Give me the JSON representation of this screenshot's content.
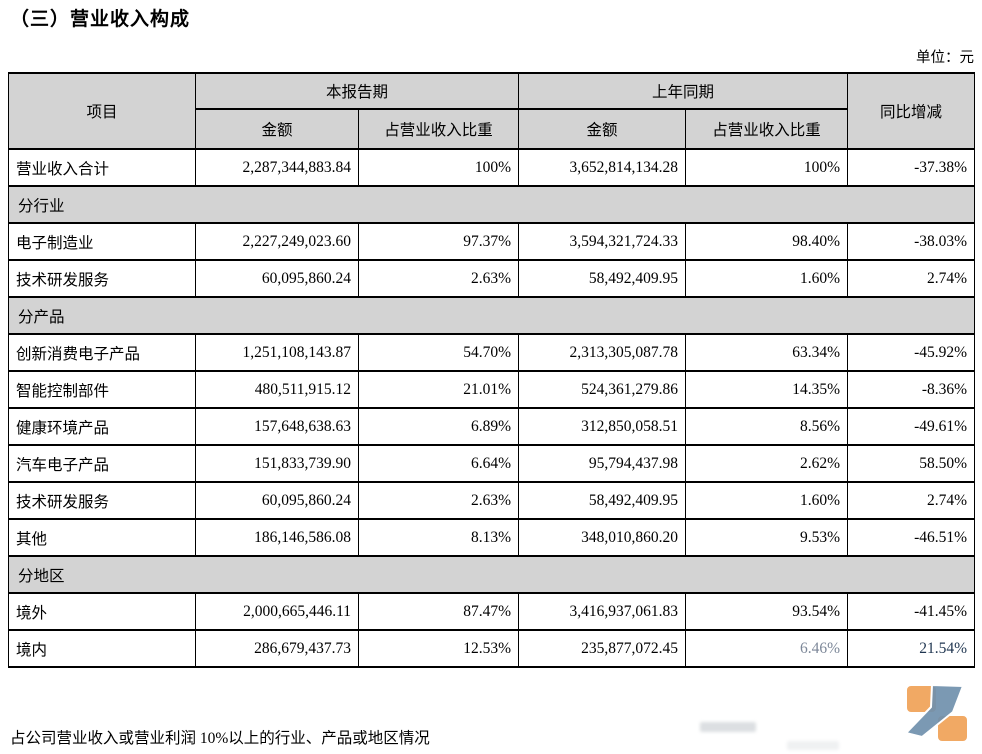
{
  "page": {
    "title": "（三）营业收入构成",
    "unit_label": "单位：元",
    "footer_note": "占公司营业收入或营业利润 10%以上的行业、产品或地区情况"
  },
  "table": {
    "header": {
      "item": "项目",
      "current_period": "本报告期",
      "prior_period": "上年同期",
      "amount": "金额",
      "pct_of_revenue": "占营业收入比重",
      "yoy_change": "同比增减"
    },
    "rows": [
      {
        "type": "data",
        "item": "营业收入合计",
        "cur_amount": "2,287,344,883.84",
        "cur_pct": "100%",
        "prior_amount": "3,652,814,134.28",
        "prior_pct": "100%",
        "yoy": "-37.38%"
      },
      {
        "type": "section",
        "item": "分行业"
      },
      {
        "type": "data",
        "item": "电子制造业",
        "cur_amount": "2,227,249,023.60",
        "cur_pct": "97.37%",
        "prior_amount": "3,594,321,724.33",
        "prior_pct": "98.40%",
        "yoy": "-38.03%"
      },
      {
        "type": "data",
        "item": "技术研发服务",
        "cur_amount": "60,095,860.24",
        "cur_pct": "2.63%",
        "prior_amount": "58,492,409.95",
        "prior_pct": "1.60%",
        "yoy": "2.74%"
      },
      {
        "type": "section",
        "item": "分产品"
      },
      {
        "type": "data",
        "item": "创新消费电子产品",
        "cur_amount": "1,251,108,143.87",
        "cur_pct": "54.70%",
        "prior_amount": "2,313,305,087.78",
        "prior_pct": "63.34%",
        "yoy": "-45.92%"
      },
      {
        "type": "data",
        "item": "智能控制部件",
        "cur_amount": "480,511,915.12",
        "cur_pct": "21.01%",
        "prior_amount": "524,361,279.86",
        "prior_pct": "14.35%",
        "yoy": "-8.36%"
      },
      {
        "type": "data",
        "item": "健康环境产品",
        "cur_amount": "157,648,638.63",
        "cur_pct": "6.89%",
        "prior_amount": "312,850,058.51",
        "prior_pct": "8.56%",
        "yoy": "-49.61%"
      },
      {
        "type": "data",
        "item": "汽车电子产品",
        "cur_amount": "151,833,739.90",
        "cur_pct": "6.64%",
        "prior_amount": "95,794,437.98",
        "prior_pct": "2.62%",
        "yoy": "58.50%"
      },
      {
        "type": "data",
        "item": "技术研发服务",
        "cur_amount": "60,095,860.24",
        "cur_pct": "2.63%",
        "prior_amount": "58,492,409.95",
        "prior_pct": "1.60%",
        "yoy": "2.74%"
      },
      {
        "type": "data",
        "item": "其他",
        "cur_amount": "186,146,586.08",
        "cur_pct": "8.13%",
        "prior_amount": "348,010,860.20",
        "prior_pct": "9.53%",
        "yoy": "-46.51%"
      },
      {
        "type": "section",
        "item": "分地区"
      },
      {
        "type": "data",
        "item": "境外",
        "cur_amount": "2,000,665,446.11",
        "cur_pct": "87.47%",
        "prior_amount": "3,416,937,061.83",
        "prior_pct": "93.54%",
        "yoy": "-41.45%"
      },
      {
        "type": "data",
        "item": "境内",
        "cur_amount": "286,679,437.73",
        "cur_pct": "12.53%",
        "prior_amount": "235,877,072.45",
        "prior_pct": "6.46%",
        "yoy": "21.54%",
        "washed": true
      }
    ]
  },
  "colors": {
    "header_fill": "#d3d3d3",
    "border": "#000000",
    "washed_text": "#7c8798",
    "logo_orange": "#f0a45c",
    "logo_blue": "#7090ad"
  }
}
